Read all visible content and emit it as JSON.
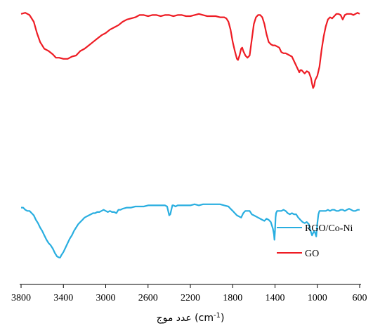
{
  "chart_data": {
    "type": "line",
    "title": "",
    "xlabel": "عدد موج (cm-1)",
    "xlabel_parts": {
      "prefix": "عدد موج (cm",
      "sup": "-1",
      "suffix": ")"
    },
    "ylabel": "",
    "x_reversed": true,
    "xlim": [
      3800,
      600
    ],
    "ylim": [
      0,
      100
    ],
    "x_ticks": [
      3800,
      3400,
      3000,
      2600,
      2200,
      1800,
      1400,
      1000,
      600
    ],
    "y_axis_visible": false,
    "grid": false,
    "legend_position": "bottom-right",
    "series": [
      {
        "name": "GO",
        "color": "#ee1c24",
        "points": [
          [
            3800,
            97
          ],
          [
            3760,
            98
          ],
          [
            3720,
            96
          ],
          [
            3680,
            90
          ],
          [
            3650,
            80
          ],
          [
            3620,
            72
          ],
          [
            3580,
            66
          ],
          [
            3540,
            64
          ],
          [
            3500,
            61
          ],
          [
            3470,
            58
          ],
          [
            3440,
            58
          ],
          [
            3400,
            57
          ],
          [
            3360,
            57
          ],
          [
            3320,
            59
          ],
          [
            3280,
            60
          ],
          [
            3240,
            64
          ],
          [
            3200,
            66
          ],
          [
            3160,
            69
          ],
          [
            3120,
            72
          ],
          [
            3080,
            75
          ],
          [
            3040,
            78
          ],
          [
            3000,
            80
          ],
          [
            2960,
            83
          ],
          [
            2920,
            85
          ],
          [
            2880,
            87
          ],
          [
            2840,
            90
          ],
          [
            2800,
            92
          ],
          [
            2760,
            93
          ],
          [
            2720,
            94
          ],
          [
            2680,
            96
          ],
          [
            2640,
            96
          ],
          [
            2600,
            95
          ],
          [
            2560,
            96
          ],
          [
            2520,
            96
          ],
          [
            2480,
            95
          ],
          [
            2440,
            96
          ],
          [
            2400,
            96
          ],
          [
            2360,
            95
          ],
          [
            2320,
            96
          ],
          [
            2280,
            96
          ],
          [
            2240,
            95
          ],
          [
            2200,
            95
          ],
          [
            2160,
            96
          ],
          [
            2120,
            97
          ],
          [
            2080,
            96
          ],
          [
            2040,
            95
          ],
          [
            2000,
            95
          ],
          [
            1960,
            95
          ],
          [
            1920,
            94
          ],
          [
            1880,
            94
          ],
          [
            1860,
            93
          ],
          [
            1840,
            90
          ],
          [
            1820,
            83
          ],
          [
            1800,
            72
          ],
          [
            1780,
            64
          ],
          [
            1760,
            57
          ],
          [
            1750,
            56
          ],
          [
            1735,
            60
          ],
          [
            1720,
            66
          ],
          [
            1710,
            67
          ],
          [
            1700,
            64
          ],
          [
            1680,
            60
          ],
          [
            1660,
            58
          ],
          [
            1640,
            60
          ],
          [
            1620,
            74
          ],
          [
            1600,
            88
          ],
          [
            1580,
            94
          ],
          [
            1560,
            96
          ],
          [
            1540,
            96
          ],
          [
            1520,
            94
          ],
          [
            1500,
            88
          ],
          [
            1480,
            79
          ],
          [
            1460,
            72
          ],
          [
            1440,
            70
          ],
          [
            1420,
            69
          ],
          [
            1400,
            69
          ],
          [
            1380,
            68
          ],
          [
            1360,
            67
          ],
          [
            1340,
            63
          ],
          [
            1320,
            62
          ],
          [
            1300,
            62
          ],
          [
            1280,
            61
          ],
          [
            1260,
            60
          ],
          [
            1240,
            59
          ],
          [
            1220,
            55
          ],
          [
            1200,
            51
          ],
          [
            1180,
            47
          ],
          [
            1170,
            45
          ],
          [
            1160,
            47
          ],
          [
            1150,
            47
          ],
          [
            1120,
            44
          ],
          [
            1100,
            46
          ],
          [
            1080,
            45
          ],
          [
            1060,
            40
          ],
          [
            1050,
            35
          ],
          [
            1040,
            31
          ],
          [
            1030,
            33
          ],
          [
            1020,
            38
          ],
          [
            1000,
            42
          ],
          [
            980,
            50
          ],
          [
            960,
            65
          ],
          [
            940,
            77
          ],
          [
            920,
            86
          ],
          [
            900,
            92
          ],
          [
            880,
            94
          ],
          [
            860,
            93
          ],
          [
            840,
            95
          ],
          [
            820,
            97
          ],
          [
            800,
            97
          ],
          [
            780,
            96
          ],
          [
            760,
            92
          ],
          [
            740,
            96
          ],
          [
            720,
            97
          ],
          [
            700,
            97
          ],
          [
            680,
            97
          ],
          [
            660,
            96
          ],
          [
            640,
            97
          ],
          [
            620,
            98
          ],
          [
            600,
            97
          ]
        ]
      },
      {
        "name": "RGO/Co-Ni",
        "color": "#29aee0",
        "points": [
          [
            3800,
            49
          ],
          [
            3780,
            49
          ],
          [
            3760,
            47
          ],
          [
            3740,
            46
          ],
          [
            3720,
            46
          ],
          [
            3700,
            44
          ],
          [
            3680,
            42
          ],
          [
            3660,
            38
          ],
          [
            3640,
            35
          ],
          [
            3620,
            31
          ],
          [
            3600,
            28
          ],
          [
            3580,
            24
          ],
          [
            3560,
            20
          ],
          [
            3540,
            17
          ],
          [
            3520,
            15
          ],
          [
            3500,
            12
          ],
          [
            3480,
            8
          ],
          [
            3460,
            5
          ],
          [
            3440,
            4
          ],
          [
            3430,
            4
          ],
          [
            3420,
            6
          ],
          [
            3400,
            9
          ],
          [
            3380,
            13
          ],
          [
            3360,
            17
          ],
          [
            3340,
            21
          ],
          [
            3320,
            24
          ],
          [
            3300,
            28
          ],
          [
            3280,
            31
          ],
          [
            3260,
            34
          ],
          [
            3240,
            36
          ],
          [
            3220,
            38
          ],
          [
            3200,
            40
          ],
          [
            3180,
            41
          ],
          [
            3160,
            42
          ],
          [
            3140,
            43
          ],
          [
            3120,
            44
          ],
          [
            3100,
            44
          ],
          [
            3080,
            45
          ],
          [
            3060,
            45
          ],
          [
            3040,
            46
          ],
          [
            3020,
            47
          ],
          [
            3000,
            46
          ],
          [
            2980,
            45
          ],
          [
            2960,
            46
          ],
          [
            2940,
            45
          ],
          [
            2920,
            45
          ],
          [
            2900,
            44
          ],
          [
            2880,
            47
          ],
          [
            2860,
            47
          ],
          [
            2840,
            48
          ],
          [
            2800,
            49
          ],
          [
            2760,
            49
          ],
          [
            2720,
            50
          ],
          [
            2680,
            50
          ],
          [
            2640,
            50
          ],
          [
            2600,
            51
          ],
          [
            2560,
            51
          ],
          [
            2520,
            51
          ],
          [
            2480,
            51
          ],
          [
            2440,
            51
          ],
          [
            2420,
            50
          ],
          [
            2410,
            46
          ],
          [
            2400,
            42
          ],
          [
            2390,
            43
          ],
          [
            2380,
            47
          ],
          [
            2370,
            51
          ],
          [
            2360,
            51
          ],
          [
            2340,
            50
          ],
          [
            2320,
            51
          ],
          [
            2280,
            51
          ],
          [
            2240,
            51
          ],
          [
            2200,
            51
          ],
          [
            2160,
            52
          ],
          [
            2120,
            51
          ],
          [
            2080,
            52
          ],
          [
            2040,
            52
          ],
          [
            2000,
            52
          ],
          [
            1960,
            52
          ],
          [
            1920,
            52
          ],
          [
            1880,
            51
          ],
          [
            1840,
            50
          ],
          [
            1820,
            48
          ],
          [
            1800,
            46
          ],
          [
            1780,
            44
          ],
          [
            1760,
            42
          ],
          [
            1740,
            41
          ],
          [
            1720,
            40
          ],
          [
            1700,
            44
          ],
          [
            1680,
            46
          ],
          [
            1660,
            46
          ],
          [
            1640,
            46
          ],
          [
            1620,
            43
          ],
          [
            1600,
            42
          ],
          [
            1580,
            41
          ],
          [
            1560,
            40
          ],
          [
            1540,
            39
          ],
          [
            1520,
            38
          ],
          [
            1500,
            37
          ],
          [
            1480,
            39
          ],
          [
            1460,
            38
          ],
          [
            1440,
            36
          ],
          [
            1430,
            33
          ],
          [
            1420,
            30
          ],
          [
            1410,
            25
          ],
          [
            1405,
            20
          ],
          [
            1400,
            28
          ],
          [
            1395,
            40
          ],
          [
            1390,
            44
          ],
          [
            1380,
            46
          ],
          [
            1360,
            46
          ],
          [
            1340,
            46
          ],
          [
            1320,
            47
          ],
          [
            1300,
            46
          ],
          [
            1280,
            44
          ],
          [
            1260,
            43
          ],
          [
            1240,
            44
          ],
          [
            1220,
            43
          ],
          [
            1200,
            43
          ],
          [
            1180,
            40
          ],
          [
            1160,
            38
          ],
          [
            1140,
            36
          ],
          [
            1120,
            35
          ],
          [
            1100,
            36
          ],
          [
            1080,
            34
          ],
          [
            1070,
            30
          ],
          [
            1060,
            27
          ],
          [
            1050,
            24
          ],
          [
            1040,
            26
          ],
          [
            1030,
            28
          ],
          [
            1020,
            26
          ],
          [
            1010,
            23
          ],
          [
            1000,
            35
          ],
          [
            990,
            43
          ],
          [
            980,
            46
          ],
          [
            960,
            46
          ],
          [
            940,
            46
          ],
          [
            920,
            46
          ],
          [
            900,
            47
          ],
          [
            880,
            46
          ],
          [
            860,
            47
          ],
          [
            840,
            47
          ],
          [
            820,
            46
          ],
          [
            800,
            46
          ],
          [
            780,
            47
          ],
          [
            760,
            47
          ],
          [
            740,
            46
          ],
          [
            720,
            47
          ],
          [
            700,
            48
          ],
          [
            680,
            47
          ],
          [
            660,
            46
          ],
          [
            640,
            46
          ],
          [
            620,
            47
          ],
          [
            600,
            47
          ]
        ]
      }
    ],
    "legend": [
      {
        "label": "RGO/Co-Ni",
        "color": "#29aee0"
      },
      {
        "label": "GO",
        "color": "#ee1c24"
      }
    ]
  }
}
